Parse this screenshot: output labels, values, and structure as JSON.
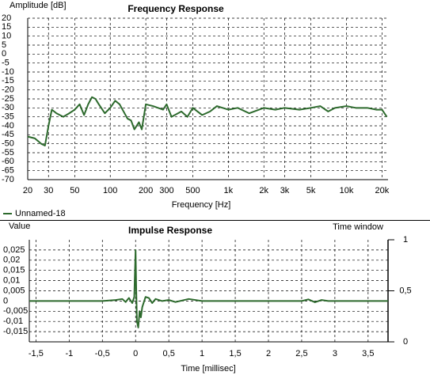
{
  "chart_data": [
    {
      "type": "line",
      "title": "Frequency Response",
      "ylabel": "Amplitude [dB]",
      "xlabel": "Frequency [Hz]",
      "xscale": "log",
      "grid": true,
      "xlim": [
        20,
        22500
      ],
      "ylim": [
        -70,
        20
      ],
      "xticks": [
        20,
        30,
        50,
        100,
        200,
        300,
        500,
        {
          "value": 1000,
          "label": "1k"
        },
        {
          "value": 2000,
          "label": "2k"
        },
        {
          "value": 3000,
          "label": "3k"
        },
        {
          "value": 5000,
          "label": "5k"
        },
        {
          "value": 10000,
          "label": "10k"
        },
        {
          "value": 20000,
          "label": "20k"
        }
      ],
      "yticks": [
        -70,
        -65,
        -60,
        -55,
        -50,
        -45,
        -40,
        -35,
        -30,
        -25,
        -20,
        -15,
        -10,
        -5,
        0,
        5,
        10,
        15,
        20
      ],
      "x": [
        20,
        23,
        26,
        28,
        30,
        32,
        35,
        40,
        45,
        50,
        55,
        60,
        65,
        70,
        75,
        80,
        90,
        100,
        110,
        120,
        140,
        150,
        160,
        175,
        185,
        200,
        230,
        280,
        300,
        330,
        400,
        450,
        500,
        600,
        700,
        800,
        1000,
        1200,
        1500,
        2000,
        2500,
        3000,
        4000,
        5000,
        6000,
        7000,
        8000,
        10000,
        12000,
        15000,
        18000,
        20000,
        22000
      ],
      "series": [
        {
          "name": "Unnamed-18",
          "color": "#2d6a2d",
          "values": [
            -46,
            -47,
            -50,
            -51,
            -40,
            -31,
            -33,
            -35,
            -33,
            -31,
            -28,
            -34,
            -28,
            -24,
            -25,
            -28,
            -33,
            -30,
            -26,
            -28,
            -36,
            -37,
            -42,
            -38,
            -42,
            -28,
            -29,
            -31,
            -28,
            -35,
            -32,
            -35,
            -30,
            -34,
            -32,
            -29,
            -31,
            -30,
            -33,
            -30,
            -31,
            -30,
            -31,
            -30,
            -29,
            -32,
            -30,
            -29,
            -30,
            -30,
            -31,
            -31,
            -35
          ]
        }
      ]
    },
    {
      "type": "line",
      "title": "Impulse Response",
      "ylabel": "Value",
      "y2label": "Time window",
      "xlabel": "Time [millisec]",
      "grid": true,
      "xlim": [
        -1.6,
        3.8
      ],
      "ylim": [
        -0.02,
        0.03
      ],
      "y2lim": [
        0,
        1
      ],
      "xticks": [
        {
          "value": -1.5,
          "label": "-1,5"
        },
        -1,
        {
          "value": -0.5,
          "label": "-0,5"
        },
        0,
        {
          "value": 0.5,
          "label": "0,5"
        },
        1,
        {
          "value": 1.5,
          "label": "1,5"
        },
        2,
        {
          "value": 2.5,
          "label": "2,5"
        },
        3,
        {
          "value": 3.5,
          "label": "3,5"
        }
      ],
      "yticks": [
        {
          "value": -0.015,
          "label": "-0,015"
        },
        {
          "value": -0.01,
          "label": "-0,01"
        },
        {
          "value": -0.005,
          "label": "-0,005"
        },
        0,
        {
          "value": 0.005,
          "label": "0,005"
        },
        {
          "value": 0.01,
          "label": "0,01"
        },
        {
          "value": 0.015,
          "label": "0,015"
        },
        {
          "value": 0.02,
          "label": "0,02"
        },
        {
          "value": 0.025,
          "label": "0,025"
        }
      ],
      "y2ticks": [
        0,
        {
          "value": 0.5,
          "label": "0,5"
        },
        1
      ],
      "x": [
        -1.6,
        -0.5,
        -0.3,
        -0.2,
        -0.15,
        -0.1,
        -0.05,
        -0.02,
        0,
        0.01,
        0.02,
        0.04,
        0.06,
        0.08,
        0.1,
        0.15,
        0.2,
        0.25,
        0.3,
        0.4,
        0.5,
        0.6,
        0.8,
        1,
        2.5,
        2.6,
        2.7,
        2.8,
        2.9,
        3.8
      ],
      "series": [
        {
          "name": "Unnamed-18",
          "color": "#2d6a2d",
          "values": [
            0,
            0,
            0.0005,
            0.001,
            -0.0005,
            0.0015,
            -0.001,
            0.002,
            0.025,
            0.005,
            -0.01,
            -0.013,
            -0.005,
            -0.008,
            -0.003,
            0.002,
            0.0015,
            -0.001,
            0.001,
            0,
            0.0005,
            -0.0005,
            0.001,
            0,
            0,
            0.0008,
            -0.0006,
            0.0005,
            0,
            0
          ]
        }
      ]
    }
  ]
}
